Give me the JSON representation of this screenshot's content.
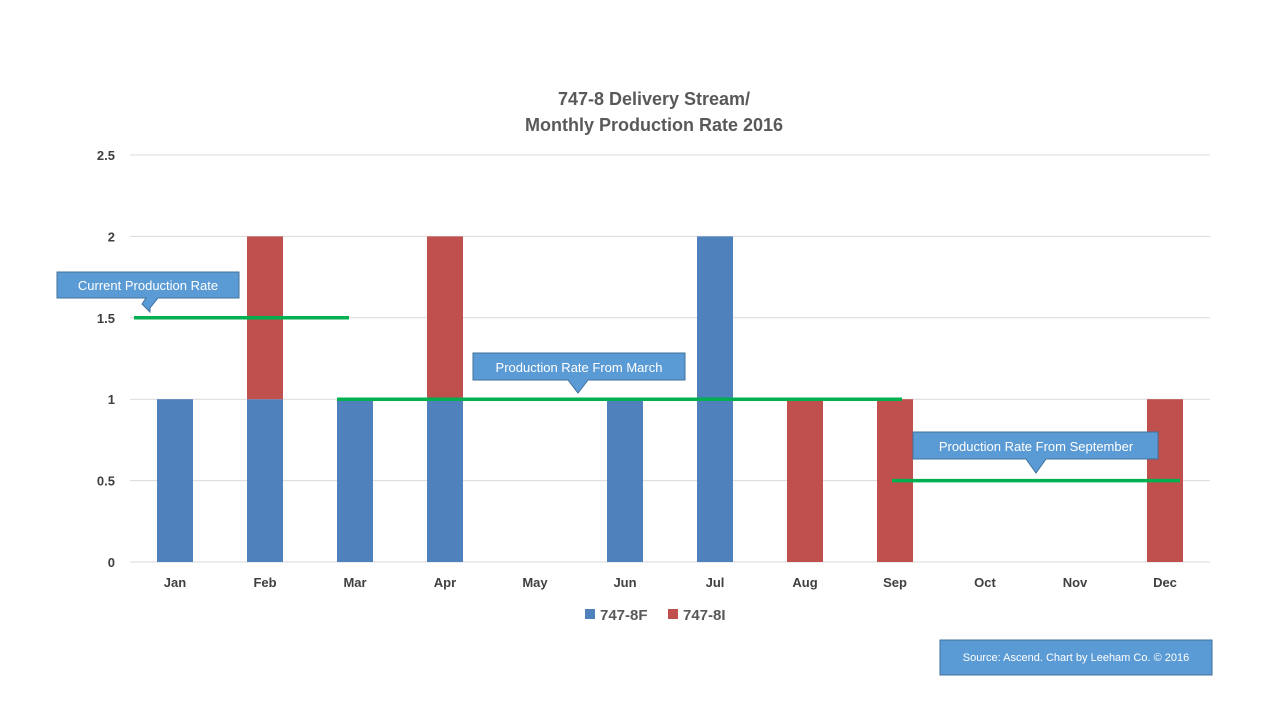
{
  "chart_data": {
    "type": "bar",
    "stacked": true,
    "title_lines": [
      "747-8 Delivery Stream/",
      "Monthly Production  Rate 2016"
    ],
    "categories": [
      "Jan",
      "Feb",
      "Mar",
      "Apr",
      "May",
      "Jun",
      "Jul",
      "Aug",
      "Sep",
      "Oct",
      "Nov",
      "Dec"
    ],
    "series": [
      {
        "name": "747-8F",
        "color": "#4f81bd",
        "values": [
          1,
          1,
          1,
          1,
          0,
          1,
          2,
          0,
          0,
          0,
          0,
          0
        ]
      },
      {
        "name": "747-8I",
        "color": "#c0504d",
        "values": [
          0,
          1,
          0,
          1,
          0,
          0,
          0,
          1,
          1,
          0,
          0,
          1
        ]
      }
    ],
    "ylim": [
      0,
      2.5
    ],
    "yticks": [
      0,
      0.5,
      1,
      1.5,
      2,
      2.5
    ],
    "ytick_labels": [
      "0",
      "0.5",
      "1",
      "1.5",
      "2",
      "2.5"
    ],
    "grid": true,
    "legend_position": "bottom",
    "rate_lines": [
      {
        "label": "Current Production Rate",
        "value": 1.5,
        "from": "Jan",
        "to": "Mar",
        "color": "#00b050"
      },
      {
        "label": "Production Rate From  March",
        "value": 1.0,
        "from": "Mar",
        "to": "Sep",
        "color": "#00b050"
      },
      {
        "label": "Production Rate From  September",
        "value": 0.5,
        "from": "Sep",
        "to": "Dec",
        "color": "#00b050"
      }
    ]
  },
  "source_note": "Source: Ascend. Chart by Leeham Co. © 2016"
}
